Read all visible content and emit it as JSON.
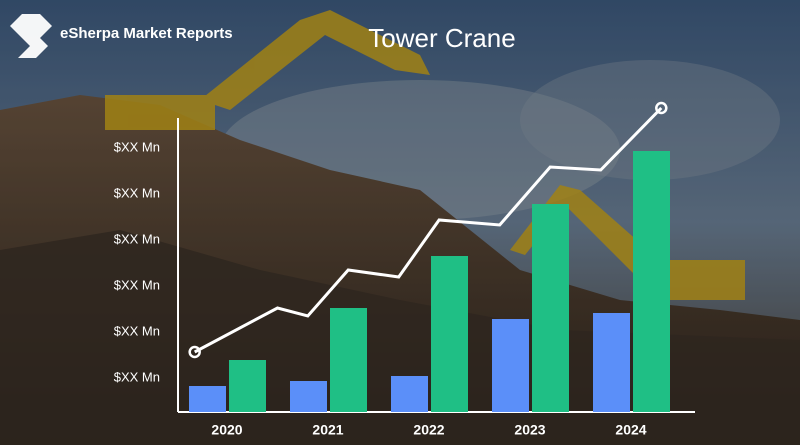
{
  "brand": "eSherpa Market Reports",
  "chart_data": {
    "type": "bar",
    "title": "Tower Crane",
    "categories": [
      "2020",
      "2021",
      "2022",
      "2023",
      "2024"
    ],
    "series": [
      {
        "color": "#5b8ff9",
        "values": [
          26,
          31,
          36,
          93,
          99
        ]
      },
      {
        "color": "#1fbf85",
        "values": [
          52,
          104,
          156,
          208,
          261
        ]
      }
    ],
    "line": {
      "type": "line",
      "color": "#ffffff",
      "x": [
        -0.32,
        0.5,
        0.8,
        1.2,
        1.7,
        2.1,
        2.7,
        3.2,
        3.7,
        4.3
      ],
      "values": [
        60,
        104,
        96,
        142,
        135,
        192,
        187,
        245,
        242,
        304
      ]
    },
    "ylim": [
      0,
      310
    ],
    "yticks": [
      {
        "value": 34,
        "label": "$XX Mn"
      },
      {
        "value": 80,
        "label": "$XX Mn"
      },
      {
        "value": 126,
        "label": "$XX Mn"
      },
      {
        "value": 172,
        "label": "$XX Mn"
      },
      {
        "value": 218,
        "label": "$XX Mn"
      },
      {
        "value": 264,
        "label": "$XX Mn"
      }
    ]
  }
}
